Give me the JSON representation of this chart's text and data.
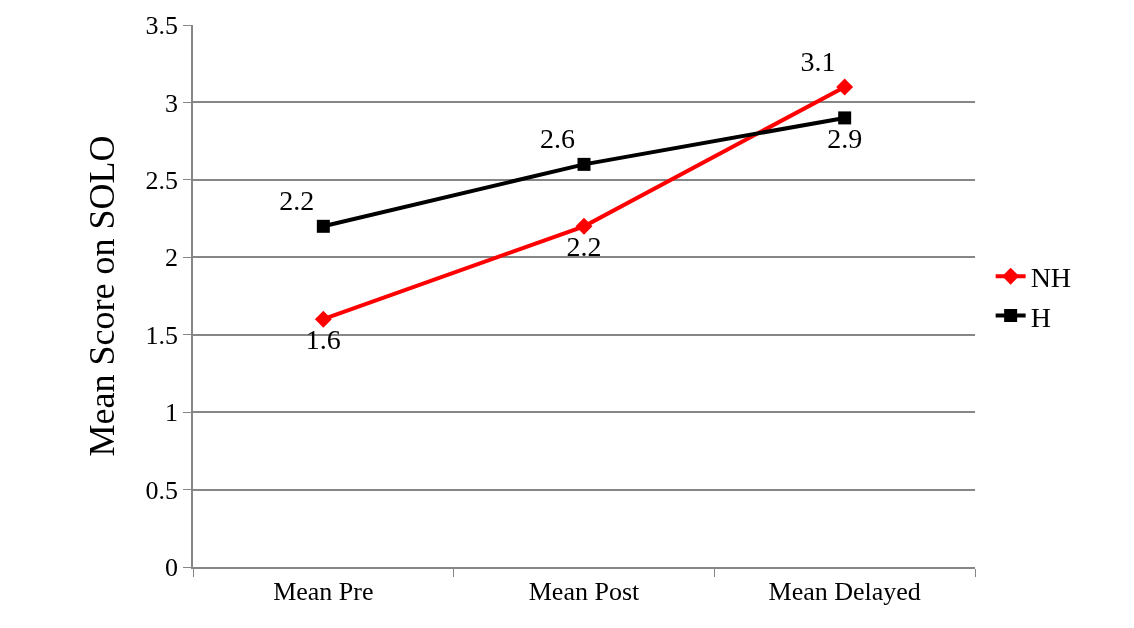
{
  "chart_data": {
    "type": "line",
    "ylabel": "Mean Score on SOLO",
    "categories": [
      "Mean Pre",
      "Mean Post",
      "Mean Delayed"
    ],
    "series": [
      {
        "name": "NH",
        "color": "#ff0000",
        "marker": "diamond",
        "values": [
          1.6,
          2.2,
          3.1
        ]
      },
      {
        "name": "H",
        "color": "#000000",
        "marker": "square",
        "values": [
          2.2,
          2.6,
          2.9
        ]
      }
    ],
    "ylim": [
      0,
      3.5
    ],
    "yticks": [
      0,
      0.5,
      1,
      1.5,
      2,
      2.5,
      3,
      3.5
    ],
    "grid": "y",
    "legend": "right",
    "data_labels": true,
    "line_style": "solid"
  }
}
